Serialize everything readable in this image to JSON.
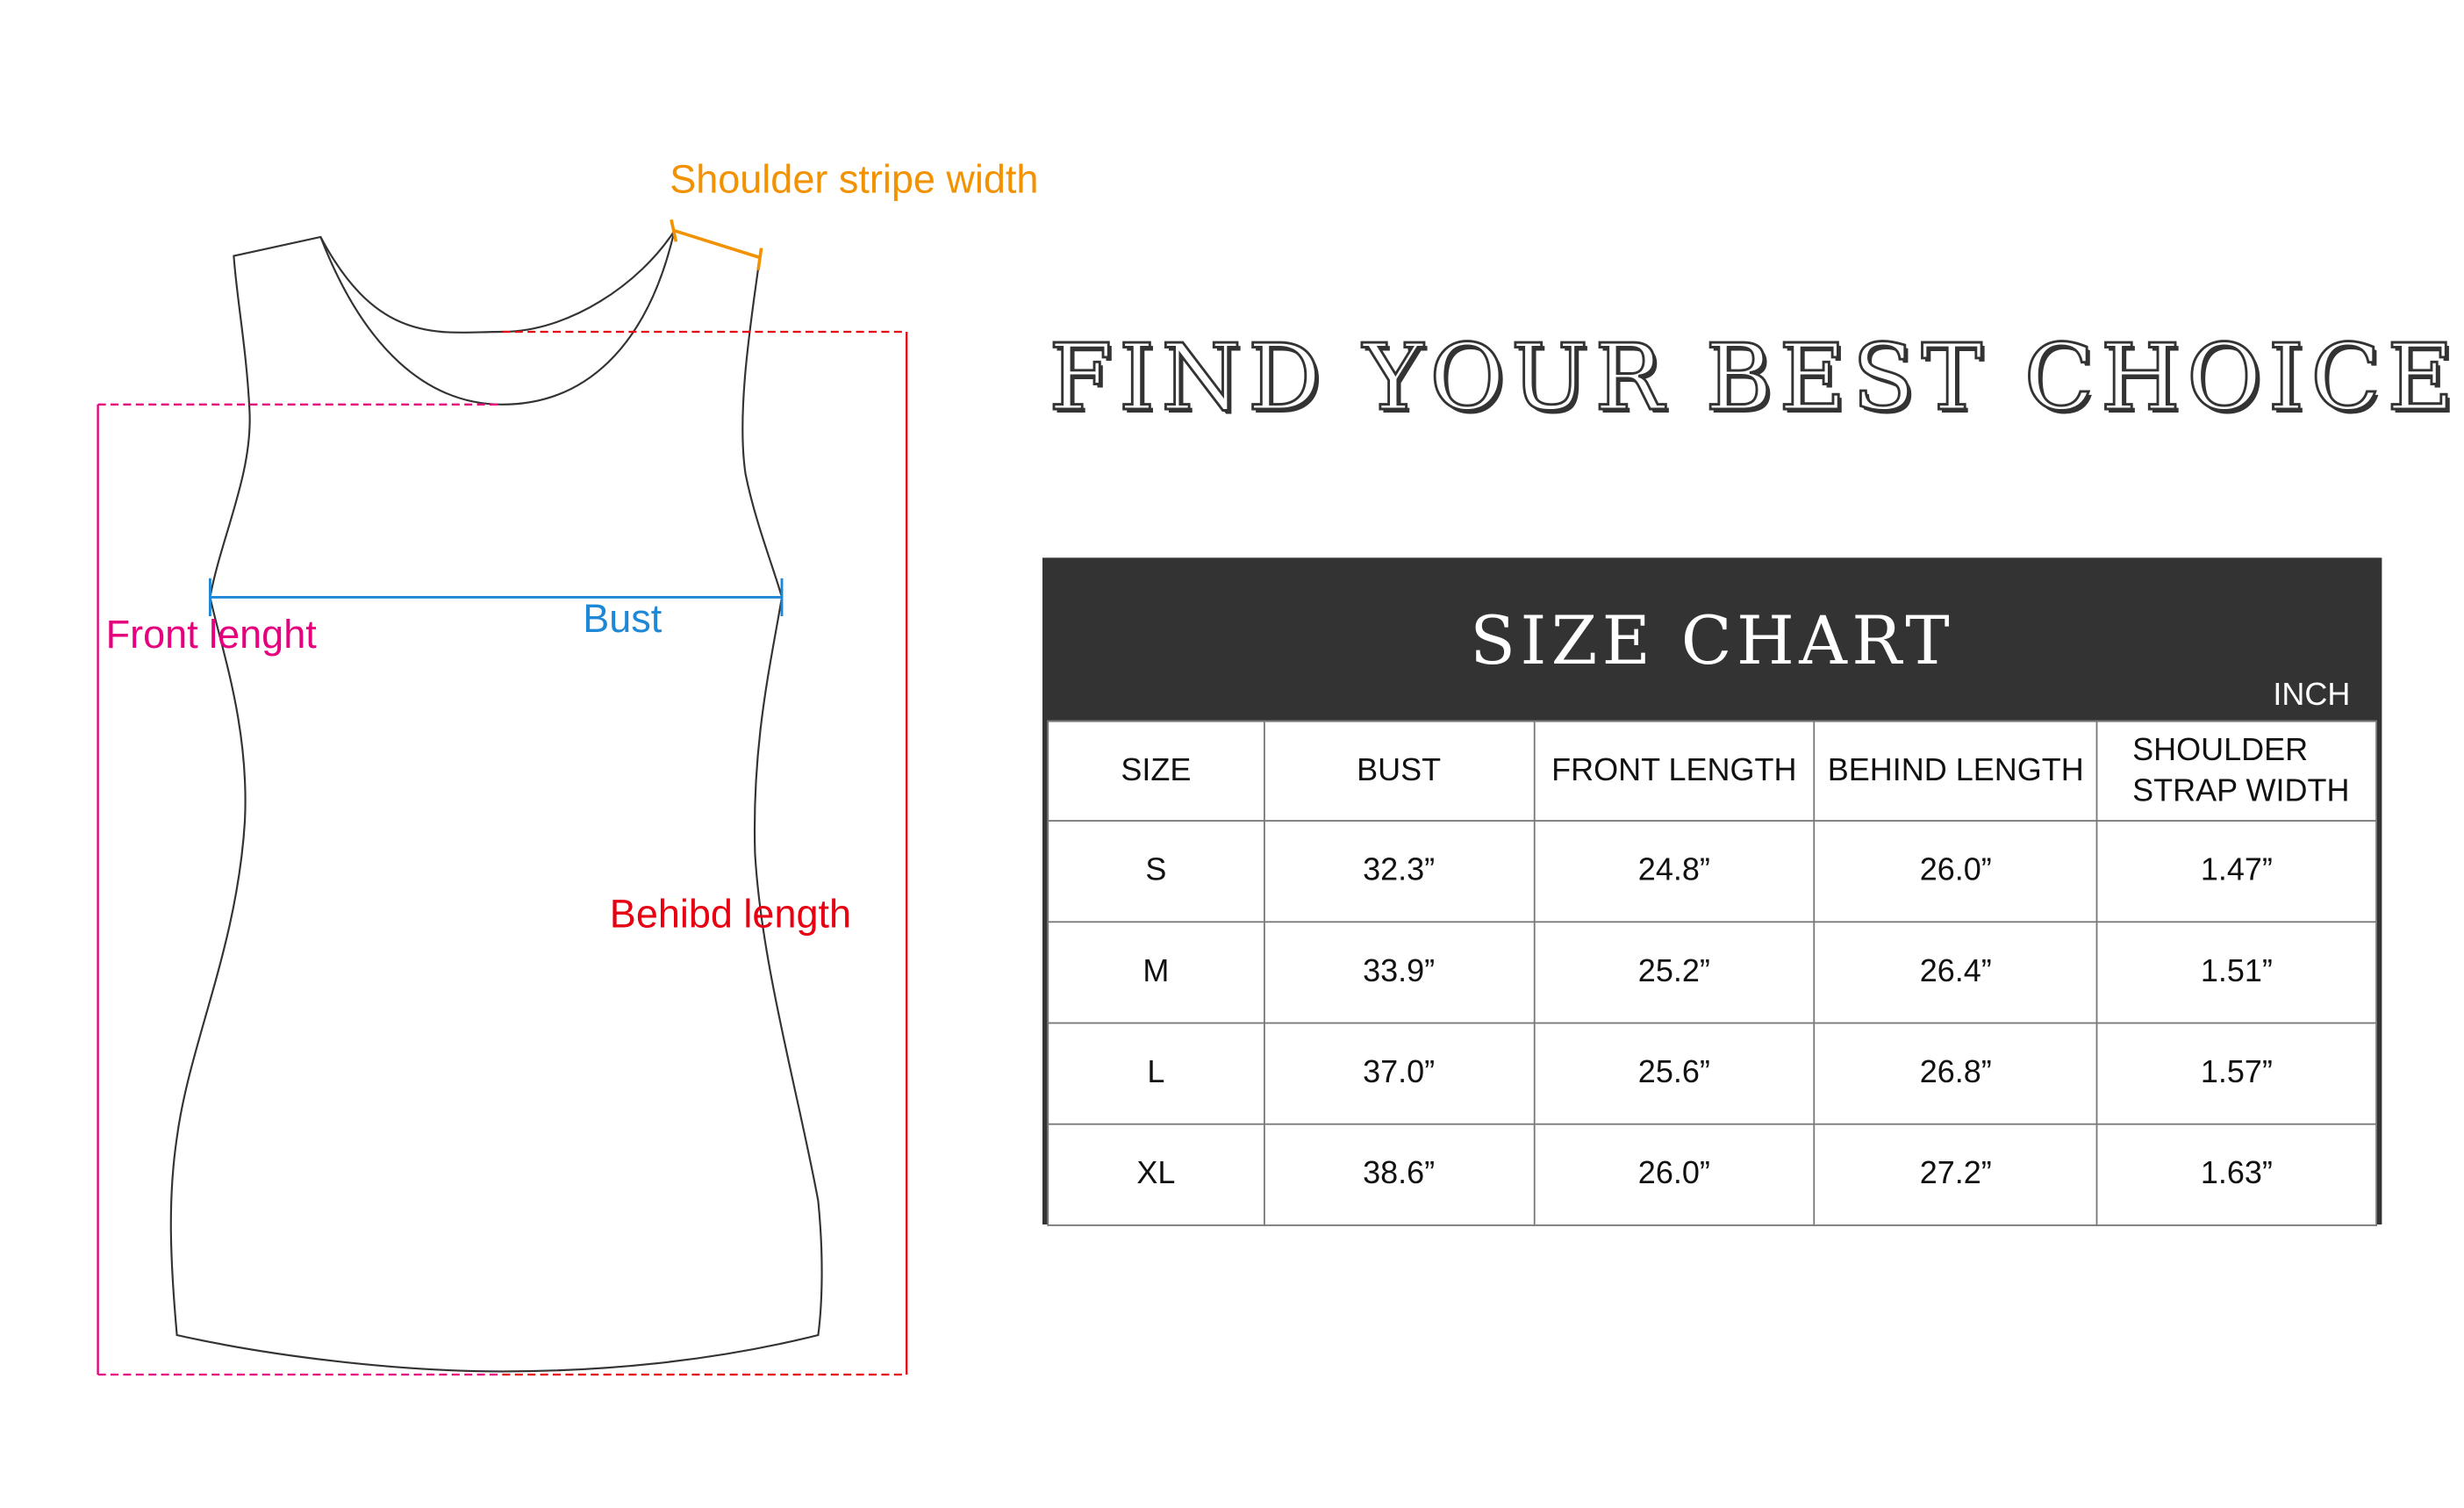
{
  "diagram": {
    "labels": {
      "shoulder": "Shoulder stripe width",
      "front": "Front lenght",
      "bust": "Bust",
      "behind": "Behibd length"
    },
    "colors": {
      "shoulder": "#f39200",
      "front": "#e6007e",
      "bust": "#1e88d6",
      "behind": "#e60012",
      "outline": "#333333"
    }
  },
  "heading": "FIND YOUR BEST CHOICE",
  "size_chart": {
    "title": "SIZE CHART",
    "unit": "INCH",
    "columns": [
      "SIZE",
      "BUST",
      "FRONT LENGTH",
      "BEHIND LENGTH",
      "SHOULDER STRAP WIDTH"
    ],
    "columns_split": {
      "shoulder_line1": "SHOULDER",
      "shoulder_line2": "STRAP WIDTH"
    },
    "rows": [
      [
        "S",
        "32.3”",
        "24.8”",
        "26.0”",
        "1.47”"
      ],
      [
        "M",
        "33.9”",
        "25.2”",
        "26.4”",
        "1.51”"
      ],
      [
        "L",
        "37.0”",
        "25.6”",
        "26.8”",
        "1.57”"
      ],
      [
        "XL",
        "38.6”",
        "26.0”",
        "27.2”",
        "1.63”"
      ]
    ]
  }
}
